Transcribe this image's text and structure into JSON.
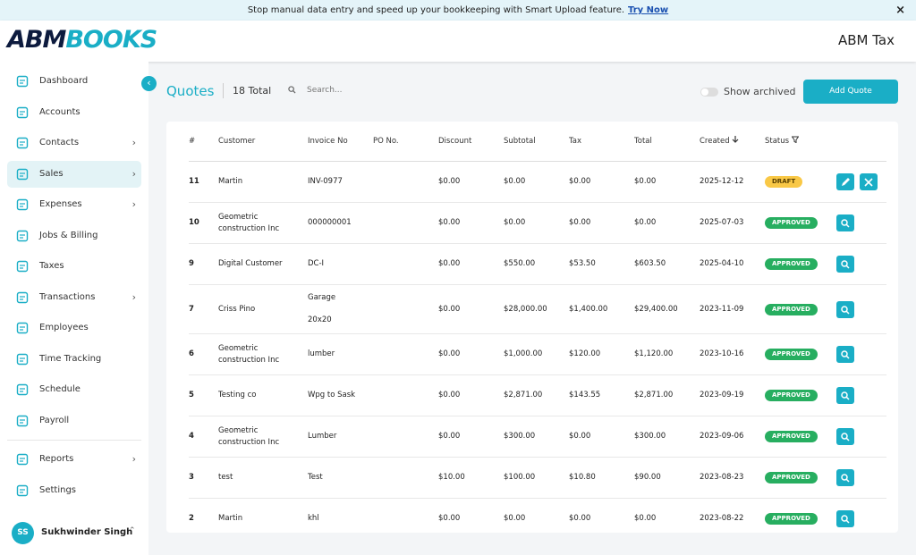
{
  "banner": {
    "text": "Stop manual data entry and speed up your bookkeeping with Smart Upload feature.",
    "link": "Try Now",
    "close": "×"
  },
  "header": {
    "logo_a": "ABM",
    "logo_b": "BOOKS",
    "company": "ABM Tax"
  },
  "sidebar": {
    "items": [
      {
        "label": "Dashboard",
        "submenu": false
      },
      {
        "label": "Accounts",
        "submenu": false
      },
      {
        "label": "Contacts",
        "submenu": true
      },
      {
        "label": "Sales",
        "submenu": true,
        "active": true
      },
      {
        "label": "Expenses",
        "submenu": true
      },
      {
        "label": "Jobs & Billing",
        "submenu": false
      },
      {
        "label": "Taxes",
        "submenu": false
      },
      {
        "label": "Transactions",
        "submenu": true
      },
      {
        "label": "Employees",
        "submenu": false
      },
      {
        "label": "Time Tracking",
        "submenu": false
      },
      {
        "label": "Schedule",
        "submenu": false
      },
      {
        "label": "Payroll",
        "submenu": false
      }
    ],
    "bottom_items": [
      {
        "label": "Reports",
        "submenu": true
      },
      {
        "label": "Settings",
        "submenu": false
      }
    ],
    "user": {
      "initials": "SS",
      "name": "Sukhwinder Singh"
    }
  },
  "toolbar": {
    "title": "Quotes",
    "total": "18 Total",
    "search_placeholder": "Search...",
    "show_archived": "Show archived",
    "add_button": "Add Quote"
  },
  "table": {
    "columns": [
      "#",
      "Customer",
      "Invoice No",
      "PO No.",
      "Discount",
      "Subtotal",
      "Tax",
      "Total",
      "Created",
      "Status"
    ],
    "rows": [
      {
        "id": "11",
        "customer": "Martin",
        "invoice": "INV-0977",
        "discount": "$0.00",
        "subtotal": "$0.00",
        "tax": "$0.00",
        "total": "$0.00",
        "created": "2025-12-12",
        "status": "DRAFT"
      },
      {
        "id": "10",
        "customer": "Geometric construction Inc",
        "invoice": "000000001",
        "discount": "$0.00",
        "subtotal": "$0.00",
        "tax": "$0.00",
        "total": "$0.00",
        "created": "2025-07-03",
        "status": "APPROVED"
      },
      {
        "id": "9",
        "customer": "Digital Customer",
        "invoice": "DC-I",
        "discount": "$0.00",
        "subtotal": "$550.00",
        "tax": "$53.50",
        "total": "$603.50",
        "created": "2025-04-10",
        "status": "APPROVED"
      },
      {
        "id": "7",
        "customer": "Criss Pino",
        "invoice": "Garage 20x20",
        "discount": "$0.00",
        "subtotal": "$28,000.00",
        "tax": "$1,400.00",
        "total": "$29,400.00",
        "created": "2023-11-09",
        "status": "APPROVED"
      },
      {
        "id": "6",
        "customer": "Geometric construction Inc",
        "invoice": "lumber",
        "discount": "$0.00",
        "subtotal": "$1,000.00",
        "tax": "$120.00",
        "total": "$1,120.00",
        "created": "2023-10-16",
        "status": "APPROVED"
      },
      {
        "id": "5",
        "customer": "Testing co",
        "invoice": "Wpg to Sask",
        "discount": "$0.00",
        "subtotal": "$2,871.00",
        "tax": "$143.55",
        "total": "$2,871.00",
        "created": "2023-09-19",
        "status": "APPROVED"
      },
      {
        "id": "4",
        "customer": "Geometric construction Inc",
        "invoice": "Lumber",
        "discount": "$0.00",
        "subtotal": "$300.00",
        "tax": "$0.00",
        "total": "$300.00",
        "created": "2023-09-06",
        "status": "APPROVED"
      },
      {
        "id": "3",
        "customer": "test",
        "invoice": "Test",
        "discount": "$10.00",
        "subtotal": "$100.00",
        "tax": "$10.80",
        "total": "$90.00",
        "created": "2023-08-23",
        "status": "APPROVED"
      },
      {
        "id": "2",
        "customer": "Martin",
        "invoice": "khl",
        "discount": "$0.00",
        "subtotal": "$0.00",
        "tax": "$0.00",
        "total": "$0.00",
        "created": "2023-08-22",
        "status": "APPROVED"
      }
    ]
  }
}
